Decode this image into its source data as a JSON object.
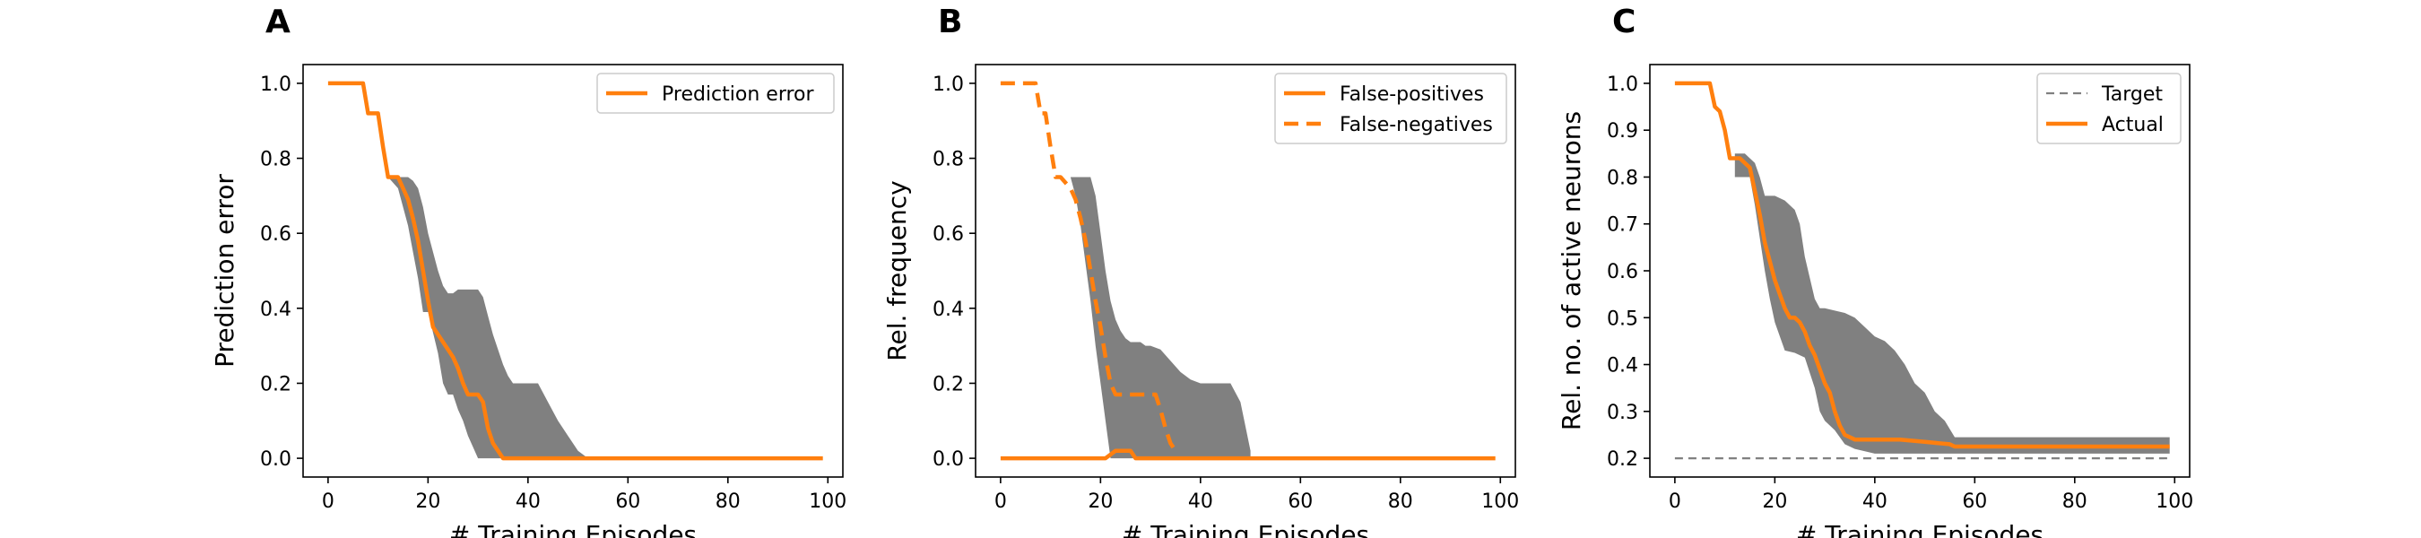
{
  "chart_data": [
    {
      "panel": "A",
      "type": "line",
      "xlabel": "# Training Episodes",
      "ylabel": "Prediction error",
      "xlim": [
        -5,
        103
      ],
      "ylim": [
        -0.05,
        1.05
      ],
      "xticks": [
        0,
        20,
        40,
        60,
        80,
        100
      ],
      "yticks": [
        0.0,
        0.2,
        0.4,
        0.6,
        0.8,
        1.0
      ],
      "ytick_decimals": 1,
      "legend": "top-right",
      "series": [
        {
          "name": "Prediction error",
          "style": "solid",
          "color": "#ff7f0e",
          "x": [
            0,
            7,
            8,
            10,
            11,
            12,
            14,
            15,
            16,
            17,
            18,
            19,
            20,
            21,
            22,
            23,
            24,
            25,
            26,
            27,
            28,
            29,
            30,
            31,
            32,
            33,
            34,
            35,
            36,
            37,
            40,
            50,
            60,
            80,
            99
          ],
          "y": [
            1.0,
            1.0,
            0.92,
            0.92,
            0.83,
            0.75,
            0.75,
            0.72,
            0.69,
            0.64,
            0.58,
            0.5,
            0.42,
            0.35,
            0.33,
            0.31,
            0.29,
            0.27,
            0.24,
            0.2,
            0.17,
            0.17,
            0.17,
            0.15,
            0.08,
            0.04,
            0.02,
            0.0,
            0.0,
            0.0,
            0.0,
            0.0,
            0.0,
            0.0,
            0.0
          ]
        }
      ],
      "bands": [
        {
          "color": "#808080",
          "x": [
            12,
            14,
            16,
            17,
            18,
            19,
            20,
            22,
            23,
            24,
            25,
            26,
            27,
            28,
            29,
            30,
            31,
            32,
            33,
            34,
            35,
            36,
            37,
            38,
            40,
            42,
            44,
            46,
            48,
            50,
            52
          ],
          "upper": [
            0.75,
            0.75,
            0.75,
            0.74,
            0.72,
            0.67,
            0.6,
            0.5,
            0.46,
            0.44,
            0.44,
            0.45,
            0.45,
            0.45,
            0.45,
            0.45,
            0.43,
            0.38,
            0.33,
            0.29,
            0.25,
            0.22,
            0.2,
            0.2,
            0.2,
            0.2,
            0.15,
            0.1,
            0.06,
            0.02,
            0.0
          ],
          "lower": [
            0.75,
            0.72,
            0.62,
            0.55,
            0.48,
            0.39,
            0.39,
            0.28,
            0.2,
            0.17,
            0.17,
            0.13,
            0.1,
            0.06,
            0.03,
            0.0,
            0.0,
            0.0,
            0.0,
            0.0,
            0.0,
            0.0,
            0.0,
            0.0,
            0.0,
            0.0,
            0.0,
            0.0,
            0.0,
            0.0,
            0.0
          ]
        }
      ]
    },
    {
      "panel": "B",
      "type": "line",
      "xlabel": "# Training Episodes",
      "ylabel": "Rel. frequency",
      "xlim": [
        -5,
        103
      ],
      "ylim": [
        -0.05,
        1.05
      ],
      "xticks": [
        0,
        20,
        40,
        60,
        80,
        100
      ],
      "yticks": [
        0.0,
        0.2,
        0.4,
        0.6,
        0.8,
        1.0
      ],
      "ytick_decimals": 1,
      "legend": "top-right",
      "series": [
        {
          "name": "False-positives",
          "style": "solid",
          "color": "#ff7f0e",
          "x": [
            0,
            10,
            20,
            21,
            22,
            23,
            24,
            25,
            26,
            27,
            28,
            30,
            40,
            60,
            80,
            99
          ],
          "y": [
            0.0,
            0.0,
            0.0,
            0.0,
            0.01,
            0.02,
            0.02,
            0.02,
            0.02,
            0.0,
            0.0,
            0.0,
            0.0,
            0.0,
            0.0,
            0.0
          ]
        },
        {
          "name": "False-negatives",
          "style": "dashed",
          "color": "#ff7f0e",
          "x": [
            0,
            7,
            8,
            9,
            10,
            11,
            12,
            14,
            15,
            16,
            17,
            18,
            19,
            20,
            21,
            22,
            23,
            24,
            25,
            26,
            27,
            28,
            29,
            30,
            31,
            32,
            33,
            34,
            35
          ],
          "y": [
            1.0,
            1.0,
            0.92,
            0.92,
            0.83,
            0.75,
            0.75,
            0.72,
            0.69,
            0.64,
            0.58,
            0.5,
            0.42,
            0.35,
            0.27,
            0.2,
            0.17,
            0.17,
            0.17,
            0.17,
            0.17,
            0.17,
            0.17,
            0.17,
            0.17,
            0.13,
            0.08,
            0.04,
            0.02
          ]
        }
      ],
      "bands": [
        {
          "color": "#808080",
          "x": [
            14,
            15,
            16,
            17,
            18,
            19,
            20,
            21,
            22,
            23,
            24,
            25,
            26,
            27,
            28,
            29,
            30,
            32,
            34,
            36,
            38,
            40,
            42,
            44,
            46,
            48,
            50
          ],
          "upper": [
            0.75,
            0.75,
            0.75,
            0.75,
            0.75,
            0.7,
            0.6,
            0.5,
            0.42,
            0.37,
            0.34,
            0.32,
            0.31,
            0.31,
            0.31,
            0.3,
            0.3,
            0.29,
            0.26,
            0.23,
            0.21,
            0.2,
            0.2,
            0.2,
            0.2,
            0.15,
            0.02
          ],
          "lower": [
            0.75,
            0.7,
            0.62,
            0.52,
            0.42,
            0.3,
            0.2,
            0.1,
            0.0,
            0.0,
            0.0,
            0.0,
            0.0,
            0.0,
            0.0,
            0.0,
            0.0,
            0.0,
            0.0,
            0.0,
            0.0,
            0.0,
            0.0,
            0.0,
            0.0,
            0.0,
            0.0
          ]
        }
      ]
    },
    {
      "panel": "C",
      "type": "line",
      "xlabel": "# Training Episodes",
      "ylabel": "Rel. no. of active neurons",
      "xlim": [
        -5,
        103
      ],
      "ylim": [
        0.16,
        1.04
      ],
      "xticks": [
        0,
        20,
        40,
        60,
        80,
        100
      ],
      "yticks": [
        0.2,
        0.3,
        0.4,
        0.5,
        0.6,
        0.7,
        0.8,
        0.9,
        1.0
      ],
      "ytick_decimals": 1,
      "legend": "top-right",
      "series": [
        {
          "name": "Target",
          "style": "dashed-thin",
          "color": "#808080",
          "x": [
            0,
            99
          ],
          "y": [
            0.2,
            0.2
          ]
        },
        {
          "name": "Actual",
          "style": "solid",
          "color": "#ff7f0e",
          "x": [
            0,
            7,
            8,
            9,
            10,
            11,
            12,
            13,
            14,
            15,
            16,
            17,
            18,
            19,
            20,
            21,
            22,
            23,
            24,
            25,
            26,
            27,
            28,
            29,
            30,
            31,
            32,
            33,
            34,
            35,
            36,
            37,
            38,
            39,
            40,
            45,
            50,
            55,
            56,
            60,
            70,
            80,
            90,
            99
          ],
          "y": [
            1.0,
            1.0,
            0.95,
            0.94,
            0.9,
            0.84,
            0.84,
            0.84,
            0.83,
            0.82,
            0.77,
            0.72,
            0.66,
            0.62,
            0.58,
            0.55,
            0.52,
            0.5,
            0.5,
            0.49,
            0.47,
            0.44,
            0.42,
            0.39,
            0.36,
            0.34,
            0.3,
            0.27,
            0.25,
            0.245,
            0.24,
            0.24,
            0.24,
            0.24,
            0.24,
            0.24,
            0.235,
            0.23,
            0.225,
            0.225,
            0.225,
            0.225,
            0.225,
            0.225
          ]
        }
      ],
      "bands": [
        {
          "color": "#808080",
          "x": [
            12,
            14,
            15,
            16,
            17,
            18,
            19,
            20,
            22,
            24,
            25,
            26,
            28,
            29,
            30,
            32,
            34,
            36,
            38,
            40,
            42,
            44,
            46,
            48,
            50,
            52,
            54,
            56,
            60,
            70,
            80,
            90,
            99
          ],
          "upper": [
            0.85,
            0.85,
            0.84,
            0.83,
            0.8,
            0.76,
            0.76,
            0.76,
            0.75,
            0.73,
            0.7,
            0.63,
            0.54,
            0.52,
            0.52,
            0.515,
            0.51,
            0.5,
            0.48,
            0.46,
            0.45,
            0.43,
            0.4,
            0.36,
            0.34,
            0.3,
            0.28,
            0.245,
            0.245,
            0.245,
            0.245,
            0.245,
            0.245
          ],
          "lower": [
            0.8,
            0.8,
            0.8,
            0.74,
            0.67,
            0.6,
            0.54,
            0.49,
            0.43,
            0.425,
            0.42,
            0.415,
            0.35,
            0.3,
            0.28,
            0.26,
            0.23,
            0.22,
            0.215,
            0.21,
            0.21,
            0.21,
            0.21,
            0.21,
            0.21,
            0.21,
            0.21,
            0.21,
            0.21,
            0.21,
            0.21,
            0.21,
            0.21
          ]
        }
      ]
    }
  ]
}
